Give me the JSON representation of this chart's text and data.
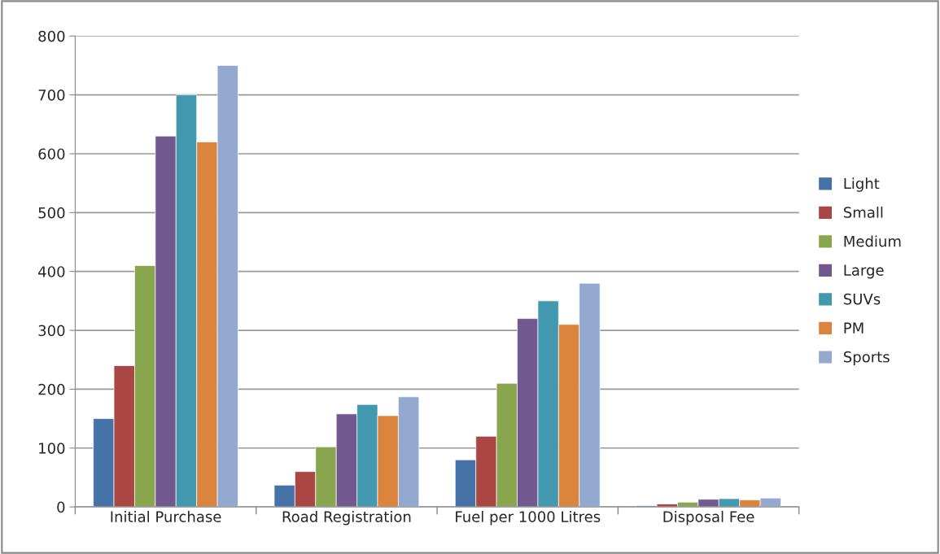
{
  "chart_data": {
    "type": "bar",
    "categories": [
      "Initial Purchase",
      "Road Registration",
      "Fuel per 1000 Litres",
      "Disposal Fee"
    ],
    "series": [
      {
        "name": "Light",
        "color": "#4572a7",
        "values": [
          150,
          37,
          80,
          2
        ]
      },
      {
        "name": "Small",
        "color": "#aa4643",
        "values": [
          240,
          60,
          120,
          5
        ]
      },
      {
        "name": "Medium",
        "color": "#89a54e",
        "values": [
          410,
          102,
          210,
          8
        ]
      },
      {
        "name": "Large",
        "color": "#71588f",
        "values": [
          630,
          158,
          320,
          13
        ]
      },
      {
        "name": "SUVs",
        "color": "#4198af",
        "values": [
          700,
          174,
          350,
          14
        ]
      },
      {
        "name": "PM",
        "color": "#db843d",
        "values": [
          620,
          155,
          310,
          12
        ]
      },
      {
        "name": "Sports",
        "color": "#93a9cf",
        "values": [
          750,
          187,
          380,
          15
        ]
      }
    ],
    "ylim": [
      0,
      800
    ],
    "yticks": [
      0,
      100,
      200,
      300,
      400,
      500,
      600,
      700,
      800
    ],
    "grid": "y",
    "legend": "right"
  }
}
